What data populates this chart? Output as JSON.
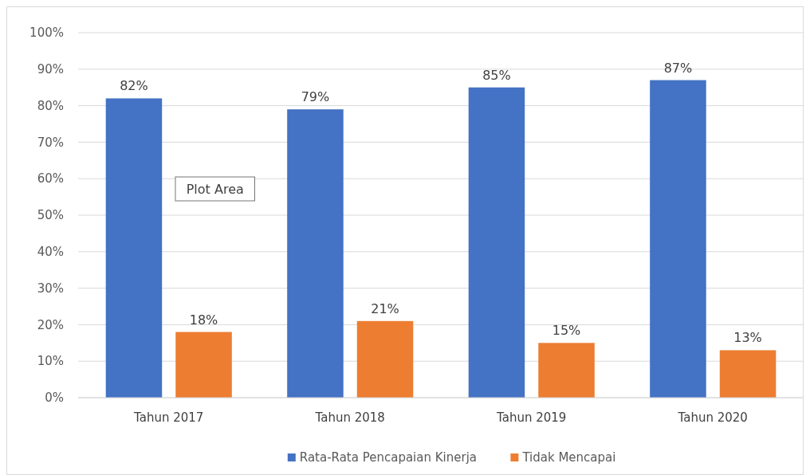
{
  "chart_data": {
    "type": "bar",
    "categories": [
      "Tahun 2017",
      "Tahun 2018",
      "Tahun 2019",
      "Tahun 2020"
    ],
    "series": [
      {
        "name": "Rata-Rata Pencapaian Kinerja",
        "color": "#4472c4",
        "values": [
          82,
          79,
          85,
          87
        ]
      },
      {
        "name": "Tidak Mencapai",
        "color": "#ed7d31",
        "values": [
          18,
          21,
          15,
          13
        ]
      }
    ],
    "ylim": [
      0,
      100
    ],
    "yticks": [
      {
        "value": 0,
        "label": "0%"
      },
      {
        "value": 10,
        "label": "10%"
      },
      {
        "value": 20,
        "label": "20%"
      },
      {
        "value": 30,
        "label": "30%"
      },
      {
        "value": 40,
        "label": "40%"
      },
      {
        "value": 50,
        "label": "50%"
      },
      {
        "value": 60,
        "label": "60%"
      },
      {
        "value": 70,
        "label": "70%"
      },
      {
        "value": 80,
        "label": "80%"
      },
      {
        "value": 90,
        "label": "90%"
      },
      {
        "value": 100,
        "label": "100%"
      }
    ],
    "value_labels": [
      [
        "82%",
        "79%",
        "85%",
        "87%"
      ],
      [
        "18%",
        "21%",
        "15%",
        "13%"
      ]
    ],
    "grid": "y",
    "legend": "bottom",
    "annotations": [
      "Plot Area"
    ]
  }
}
